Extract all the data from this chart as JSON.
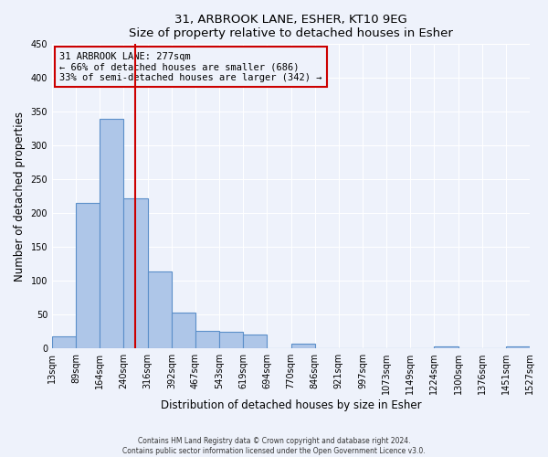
{
  "title": "31, ARBROOK LANE, ESHER, KT10 9EG",
  "subtitle": "Size of property relative to detached houses in Esher",
  "xlabel": "Distribution of detached houses by size in Esher",
  "ylabel": "Number of detached properties",
  "bar_edges": [
    13,
    89,
    164,
    240,
    316,
    392,
    467,
    543,
    619,
    694,
    770,
    846,
    921,
    997,
    1073,
    1149,
    1224,
    1300,
    1376,
    1451,
    1527
  ],
  "bar_heights": [
    18,
    215,
    340,
    222,
    113,
    53,
    26,
    24,
    20,
    0,
    7,
    0,
    0,
    0,
    0,
    0,
    2,
    0,
    0,
    2
  ],
  "bar_color": "#aec6e8",
  "bar_edge_color": "#5b8fc9",
  "ylim": [
    0,
    450
  ],
  "yticks": [
    0,
    50,
    100,
    150,
    200,
    250,
    300,
    350,
    400,
    450
  ],
  "property_value": 277,
  "vline_color": "#cc0000",
  "annotation_title": "31 ARBROOK LANE: 277sqm",
  "annotation_line1": "← 66% of detached houses are smaller (686)",
  "annotation_line2": "33% of semi-detached houses are larger (342) →",
  "annotation_box_color": "#cc0000",
  "footnote1": "Contains HM Land Registry data © Crown copyright and database right 2024.",
  "footnote2": "Contains public sector information licensed under the Open Government Licence v3.0.",
  "background_color": "#eef2fb",
  "tick_labels": [
    "13sqm",
    "89sqm",
    "164sqm",
    "240sqm",
    "316sqm",
    "392sqm",
    "467sqm",
    "543sqm",
    "619sqm",
    "694sqm",
    "770sqm",
    "846sqm",
    "921sqm",
    "997sqm",
    "1073sqm",
    "1149sqm",
    "1224sqm",
    "1300sqm",
    "1376sqm",
    "1451sqm",
    "1527sqm"
  ]
}
